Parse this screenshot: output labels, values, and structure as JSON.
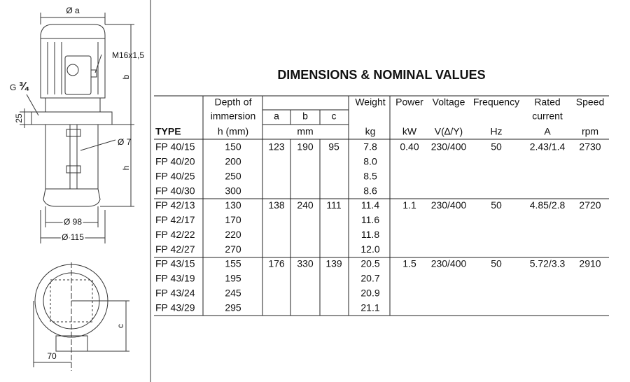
{
  "drawing": {
    "dia_a": "Ø a",
    "thread": "M16x1,5",
    "dim_b": "b",
    "g": "G",
    "g_size": "¾",
    "dim_25": "25",
    "dia_7": "Ø 7",
    "dim_h": "h",
    "dia_98": "Ø 98",
    "dia_115": "Ø 115",
    "dim_c": "c",
    "dim_70": "70"
  },
  "title": "DIMENSIONS & NOMINAL VALUES",
  "header": {
    "type": "TYPE",
    "depth_1": "Depth of",
    "depth_2": "immersion",
    "depth_unit": "h (mm)",
    "a": "a",
    "b": "b",
    "c": "c",
    "mm": "mm",
    "weight": "Weight",
    "weight_unit": "kg",
    "power": "Power",
    "power_unit": "kW",
    "voltage": "Voltage",
    "voltage_unit": "V(∆/Y)",
    "frequency": "Frequency",
    "frequency_unit": "Hz",
    "current_1": "Rated",
    "current_2": "current",
    "current_unit": "A",
    "speed": "Speed",
    "speed_unit": "rpm"
  },
  "table": {
    "groups": [
      {
        "a": "123",
        "b": "190",
        "c": "95",
        "power": "0.40",
        "voltage": "230/400",
        "frequency": "50",
        "current": "2.43/1.4",
        "speed": "2730",
        "rows": [
          [
            "FP 40/15",
            "150",
            "7.8"
          ],
          [
            "FP 40/20",
            "200",
            "8.0"
          ],
          [
            "FP 40/25",
            "250",
            "8.5"
          ],
          [
            "FP 40/30",
            "300",
            "8.6"
          ]
        ]
      },
      {
        "a": "138",
        "b": "240",
        "c": "111",
        "power": "1.1",
        "voltage": "230/400",
        "frequency": "50",
        "current": "4.85/2.8",
        "speed": "2720",
        "rows": [
          [
            "FP 42/13",
            "130",
            "11.4"
          ],
          [
            "FP 42/17",
            "170",
            "11.6"
          ],
          [
            "FP 42/22",
            "220",
            "11.8"
          ],
          [
            "FP 42/27",
            "270",
            "12.0"
          ]
        ]
      },
      {
        "a": "176",
        "b": "330",
        "c": "139",
        "power": "1.5",
        "voltage": "230/400",
        "frequency": "50",
        "current": "5.72/3.3",
        "speed": "2910",
        "rows": [
          [
            "FP 43/15",
            "155",
            "20.5"
          ],
          [
            "FP 43/19",
            "195",
            "20.7"
          ],
          [
            "FP 43/24",
            "245",
            "20.9"
          ],
          [
            "FP 43/29",
            "295",
            "21.1"
          ]
        ]
      }
    ]
  }
}
